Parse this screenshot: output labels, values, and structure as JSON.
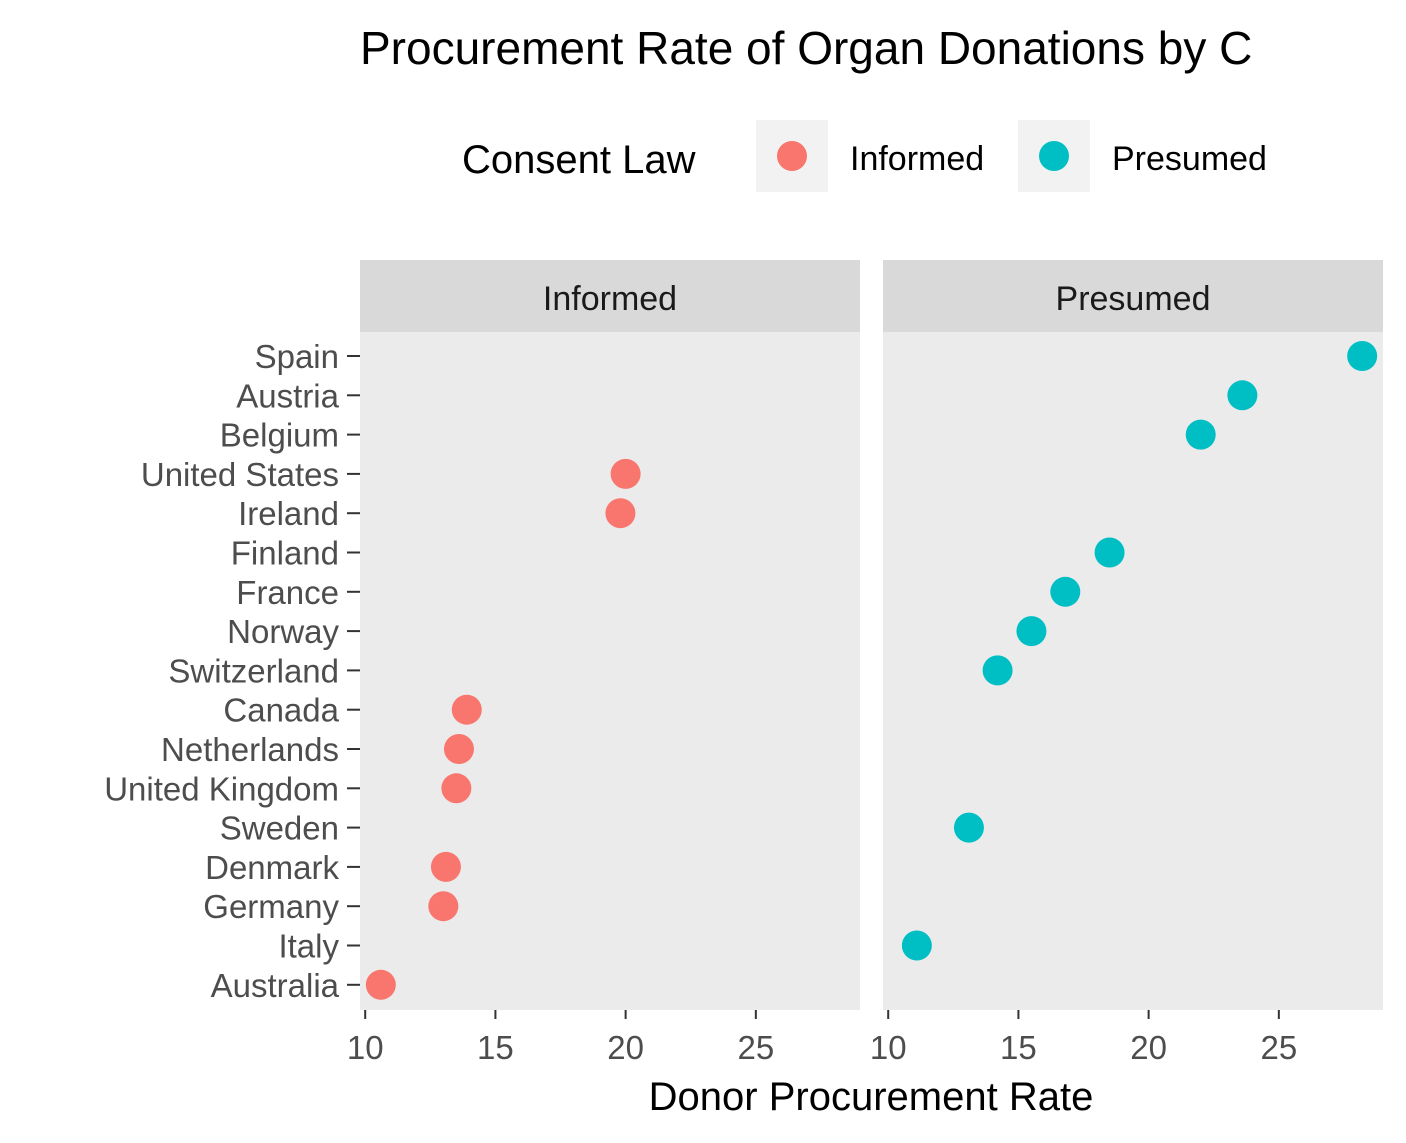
{
  "chart_data": {
    "type": "scatter",
    "title": "Procurement Rate of Organ Donations by C",
    "xlabel": "Donor Procurement Rate",
    "ylabel": "",
    "legend": {
      "title": "Consent Law",
      "position": "top",
      "entries": [
        {
          "name": "Informed",
          "color": "#F8766D"
        },
        {
          "name": "Presumed",
          "color": "#00BFC4"
        }
      ]
    },
    "facets": [
      "Informed",
      "Presumed"
    ],
    "categories": [
      "Spain",
      "Austria",
      "Belgium",
      "United States",
      "Ireland",
      "Finland",
      "France",
      "Norway",
      "Switzerland",
      "Canada",
      "Netherlands",
      "United Kingdom",
      "Sweden",
      "Denmark",
      "Germany",
      "Italy",
      "Australia"
    ],
    "xlim": [
      9.8,
      29.0
    ],
    "xticks": [
      10,
      15,
      20,
      25
    ],
    "grid": false,
    "panel_background": "#EBEBEB",
    "strip_background": "#D9D9D9",
    "series": [
      {
        "name": "Informed",
        "color": "#F8766D",
        "points": [
          {
            "country": "United States",
            "value": 20.0
          },
          {
            "country": "Ireland",
            "value": 19.8
          },
          {
            "country": "Canada",
            "value": 13.9
          },
          {
            "country": "Netherlands",
            "value": 13.6
          },
          {
            "country": "United Kingdom",
            "value": 13.5
          },
          {
            "country": "Denmark",
            "value": 13.1
          },
          {
            "country": "Germany",
            "value": 13.0
          },
          {
            "country": "Australia",
            "value": 10.6
          }
        ]
      },
      {
        "name": "Presumed",
        "color": "#00BFC4",
        "points": [
          {
            "country": "Spain",
            "value": 28.2
          },
          {
            "country": "Austria",
            "value": 23.6
          },
          {
            "country": "Belgium",
            "value": 22.0
          },
          {
            "country": "Finland",
            "value": 18.5
          },
          {
            "country": "France",
            "value": 16.8
          },
          {
            "country": "Norway",
            "value": 15.5
          },
          {
            "country": "Switzerland",
            "value": 14.2
          },
          {
            "country": "Sweden",
            "value": 13.1
          },
          {
            "country": "Italy",
            "value": 11.1
          }
        ]
      }
    ]
  }
}
